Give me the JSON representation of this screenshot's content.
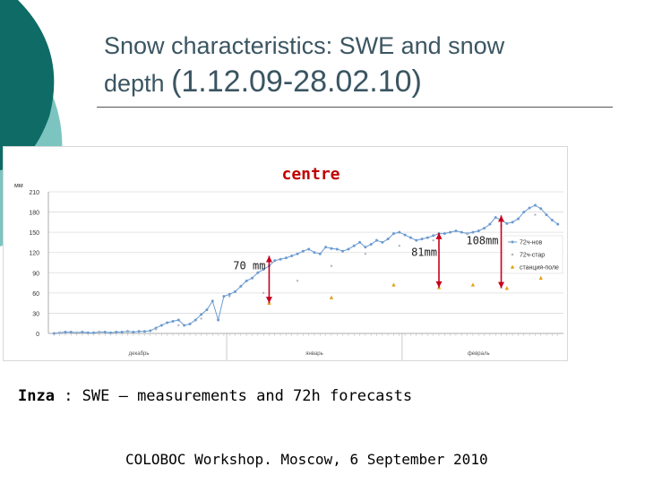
{
  "slide": {
    "title_line1": "Snow characteristics: SWE and snow",
    "title_line2a": "depth ",
    "title_line2b": "(1.12.09-28.02.10)",
    "caption_bold": "Inza",
    "caption_rest": " : SWE – measurements and  72h forecasts",
    "footer": "COLOBOC Workshop. Moscow, 6 September 2010"
  },
  "colors": {
    "teal_dark": "#0e6b66",
    "teal_light": "#7cc4c0",
    "series_nov": "#6c9bd2",
    "series_star": "#b0b6c0",
    "series_station": "#e3a21a",
    "arrow": "#c8001e",
    "heading_red": "#c00000"
  },
  "chart_data": {
    "type": "line",
    "title": "centre",
    "ylabel": "мм",
    "ylim": [
      0,
      210
    ],
    "yticks": [
      0,
      30,
      60,
      90,
      120,
      150,
      180,
      210
    ],
    "month_labels": [
      "декабрь",
      "январь",
      "февраль"
    ],
    "grid": true,
    "legend_position": "right",
    "series": [
      {
        "name": "72ч-нов",
        "kind": "line-markers",
        "x": [
          1,
          2,
          3,
          4,
          5,
          6,
          7,
          8,
          9,
          10,
          11,
          12,
          13,
          14,
          15,
          16,
          17,
          18,
          19,
          20,
          21,
          22,
          23,
          24,
          25,
          26,
          27,
          28,
          29,
          30,
          31,
          32,
          33,
          34,
          35,
          36,
          37,
          38,
          39,
          40,
          41,
          42,
          43,
          44,
          45,
          46,
          47,
          48,
          49,
          50,
          51,
          52,
          53,
          54,
          55,
          56,
          57,
          58,
          59,
          60,
          61,
          62,
          63,
          64,
          65,
          66,
          67,
          68,
          69,
          70,
          71,
          72,
          73,
          74,
          75,
          76,
          77,
          78,
          79,
          80,
          81,
          82,
          83,
          84,
          85,
          86,
          87,
          88,
          89,
          90
        ],
        "y": [
          0,
          1,
          2,
          2,
          1,
          2,
          1,
          1,
          2,
          2,
          1,
          2,
          2,
          3,
          2,
          3,
          3,
          4,
          8,
          12,
          16,
          18,
          20,
          12,
          14,
          20,
          28,
          35,
          48,
          20,
          55,
          58,
          62,
          70,
          78,
          82,
          90,
          95,
          100,
          108,
          110,
          112,
          115,
          118,
          122,
          125,
          120,
          118,
          128,
          126,
          125,
          122,
          125,
          130,
          135,
          128,
          132,
          138,
          135,
          140,
          148,
          150,
          146,
          142,
          138,
          140,
          142,
          145,
          148,
          148,
          150,
          152,
          150,
          148,
          150,
          152,
          156,
          162,
          172,
          168,
          163,
          165,
          170,
          180,
          186,
          190,
          185,
          176,
          168,
          162
        ]
      },
      {
        "name": "72ч-стар",
        "kind": "markers",
        "x": [
          2,
          5,
          9,
          14,
          19,
          23,
          27,
          32,
          38,
          44,
          50,
          56,
          62,
          68,
          74,
          80,
          86
        ],
        "y": [
          1,
          1,
          2,
          2,
          6,
          12,
          22,
          55,
          60,
          78,
          100,
          118,
          130,
          138,
          148,
          160,
          176
        ]
      },
      {
        "name": "станция-поле",
        "kind": "markers",
        "x": [
          39,
          50,
          61,
          69,
          75,
          81,
          87
        ],
        "y": [
          45,
          53,
          72,
          68,
          72,
          67,
          82
        ]
      }
    ],
    "annotations": [
      {
        "text": "70 mm",
        "x": 39,
        "y_from": 45,
        "y_to": 115
      },
      {
        "text": "81mm",
        "x": 69,
        "y_from": 68,
        "y_to": 149
      },
      {
        "text": "108mm",
        "x": 80,
        "y_from": 67,
        "y_to": 175
      }
    ]
  }
}
